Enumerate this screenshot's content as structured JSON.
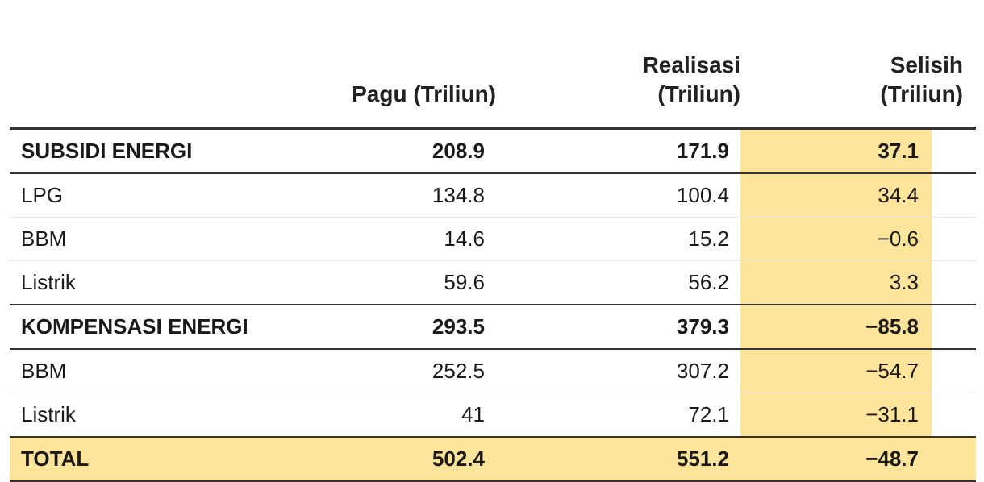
{
  "chart_data": {
    "type": "table",
    "columns": [
      "",
      "Pagu (Triliun)",
      "Realisasi (Triliun)",
      "Selisih (Triliun)"
    ],
    "header": {
      "pagu": "Pagu (Triliun)",
      "realisasi_line1": "Realisasi",
      "realisasi_line2": "(Triliun)",
      "selisih_line1": "Selisih",
      "selisih_line2": "(Triliun)"
    },
    "rows": [
      {
        "label": "SUBSIDI ENERGI",
        "pagu": "208.9",
        "realisasi": "171.9",
        "selisih": "37.1",
        "kind": "group"
      },
      {
        "label": "LPG",
        "pagu": "134.8",
        "realisasi": "100.4",
        "selisih": "34.4",
        "kind": "item"
      },
      {
        "label": "BBM",
        "pagu": "14.6",
        "realisasi": "15.2",
        "selisih": "−0.6",
        "kind": "item"
      },
      {
        "label": "Listrik",
        "pagu": "59.6",
        "realisasi": "56.2",
        "selisih": "3.3",
        "kind": "item"
      },
      {
        "label": "KOMPENSASI ENERGI",
        "pagu": "293.5",
        "realisasi": "379.3",
        "selisih": "−85.8",
        "kind": "group"
      },
      {
        "label": "BBM",
        "pagu": "252.5",
        "realisasi": "307.2",
        "selisih": "−54.7",
        "kind": "item"
      },
      {
        "label": "Listrik",
        "pagu": "41",
        "realisasi": "72.1",
        "selisih": "−31.1",
        "kind": "item"
      },
      {
        "label": "TOTAL",
        "pagu": "502.4",
        "realisasi": "551.2",
        "selisih": "−48.7",
        "kind": "total"
      }
    ],
    "colors": {
      "highlight": "#fde49b",
      "rule": "#333333",
      "row_divider": "#e6e6e6",
      "text": "#1a1a1a"
    }
  }
}
